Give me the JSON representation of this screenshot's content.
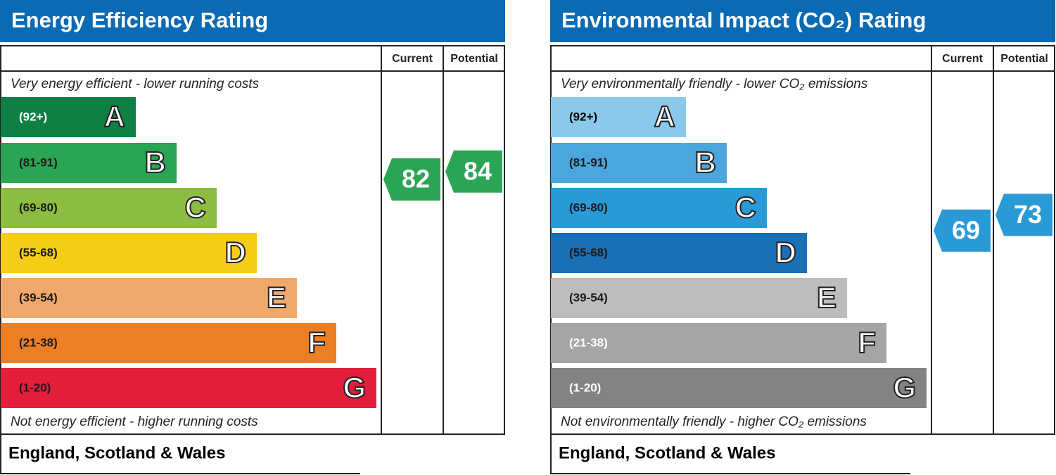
{
  "panels": [
    {
      "title": "Energy Efficiency Rating",
      "columns": [
        "Current",
        "Potential"
      ],
      "top_note": "Very energy efficient - lower running costs",
      "bottom_note": "Not energy efficient - higher running costs",
      "footer": "England, Scotland & Wales",
      "current": 82,
      "potential": 84,
      "current_color": "#2aa553",
      "potential_color": "#2aa553",
      "bands": [
        {
          "range": "(92+)",
          "letter": "A",
          "color": "#0f7f45",
          "text_color": "#ffffff"
        },
        {
          "range": "(81-91)",
          "letter": "B",
          "color": "#2aa553",
          "text_color": "#1a1a1a"
        },
        {
          "range": "(69-80)",
          "letter": "C",
          "color": "#8dbd40",
          "text_color": "#1a1a1a"
        },
        {
          "range": "(55-68)",
          "letter": "D",
          "color": "#f5cd17",
          "text_color": "#1a1a1a"
        },
        {
          "range": "(39-54)",
          "letter": "E",
          "color": "#f1a86b",
          "text_color": "#1a1a1a"
        },
        {
          "range": "(21-38)",
          "letter": "F",
          "color": "#ec7f26",
          "text_color": "#1a1a1a"
        },
        {
          "range": "(1-20)",
          "letter": "G",
          "color": "#e31e3b",
          "text_color": "#1a1a1a"
        }
      ]
    },
    {
      "title": "Environmental Impact (CO₂) Rating",
      "columns": [
        "Current",
        "Potential"
      ],
      "top_note": "Very environmentally friendly - lower CO₂ emissions",
      "bottom_note": "Not environmentally friendly - higher CO₂ emissions",
      "footer": "England, Scotland & Wales",
      "current": 69,
      "potential": 73,
      "current_color": "#2a9ad6",
      "potential_color": "#2a9ad6",
      "bands": [
        {
          "range": "(92+)",
          "letter": "A",
          "color": "#8cc8ea",
          "text_color": "#000000"
        },
        {
          "range": "(81-91)",
          "letter": "B",
          "color": "#4aa6dc",
          "text_color": "#1a1a1a"
        },
        {
          "range": "(69-80)",
          "letter": "C",
          "color": "#2a9ad6",
          "text_color": "#1a1a1a"
        },
        {
          "range": "(55-68)",
          "letter": "D",
          "color": "#1b6fb5",
          "text_color": "#1a1a1a"
        },
        {
          "range": "(39-54)",
          "letter": "E",
          "color": "#bdbdbc",
          "text_color": "#1a1a1a"
        },
        {
          "range": "(21-38)",
          "letter": "F",
          "color": "#a5a5a4",
          "text_color": "#ffffff"
        },
        {
          "range": "(1-20)",
          "letter": "G",
          "color": "#838382",
          "text_color": "#ffffff"
        }
      ]
    }
  ]
}
